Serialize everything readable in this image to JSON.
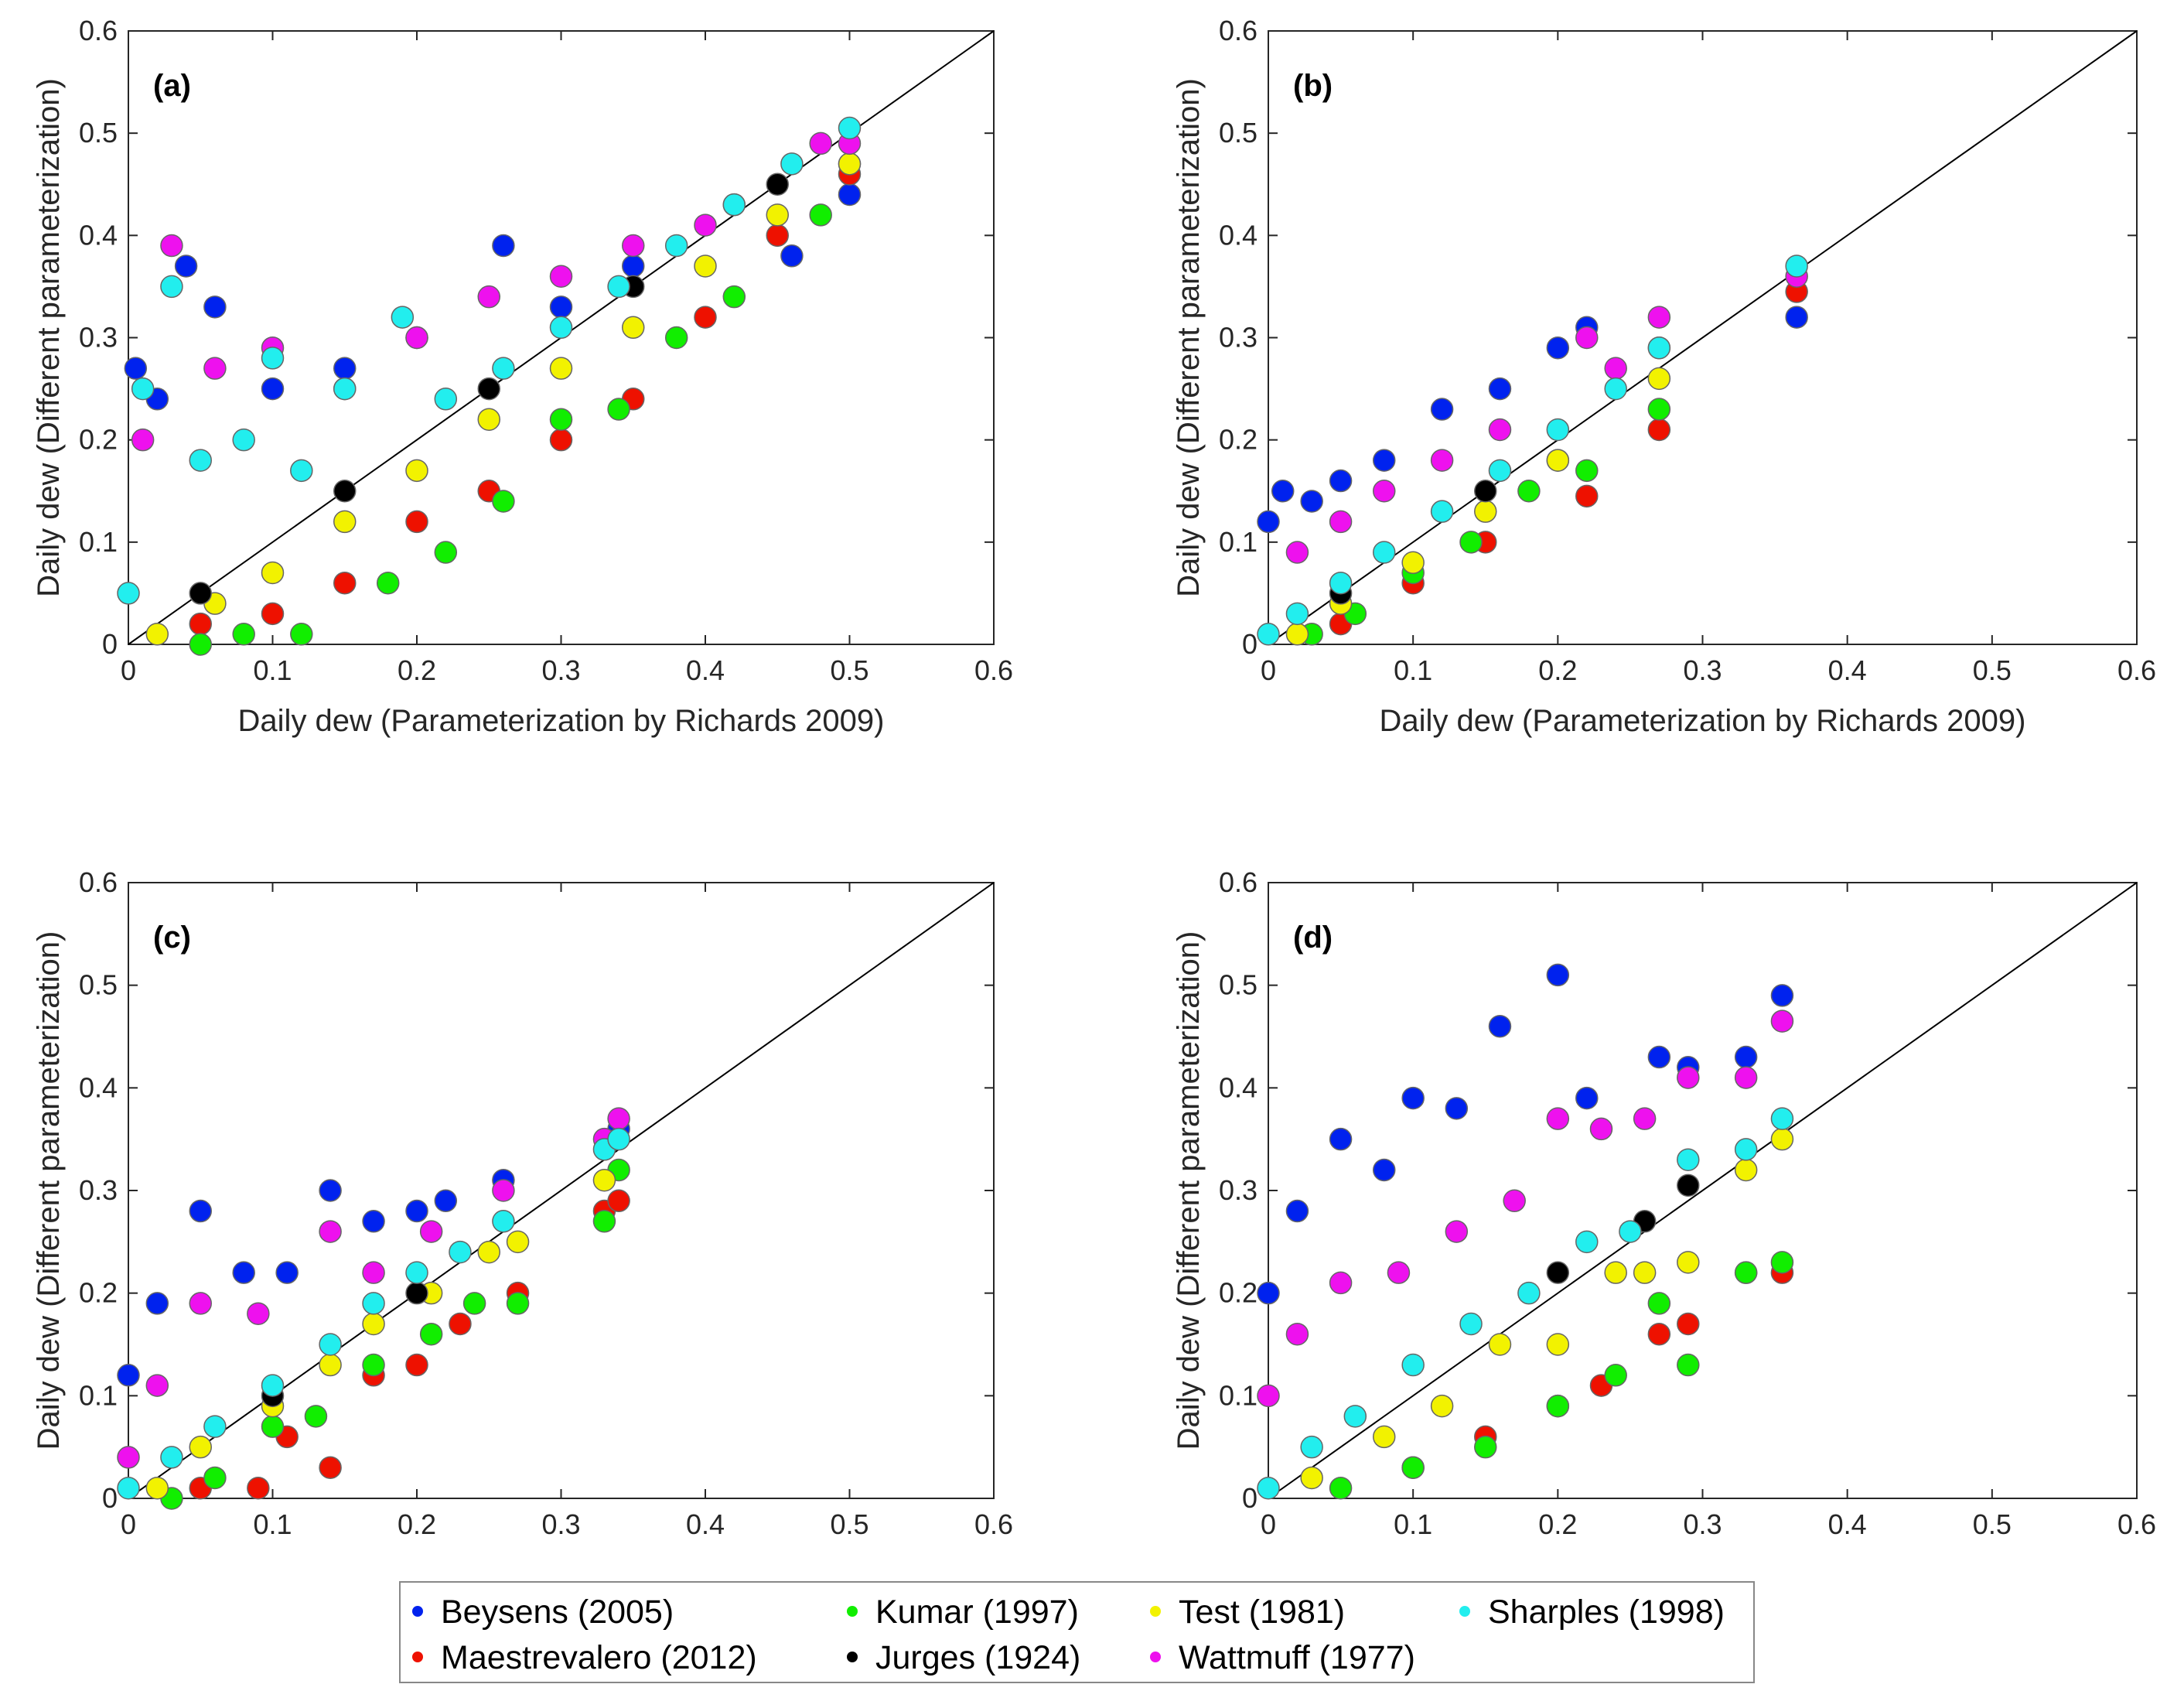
{
  "chart_data": [
    {
      "type": "scatter",
      "label": "(a)",
      "xlabel": "Daily dew (Parameterization by Richards 2009)",
      "ylabel": "Daily dew (Different parameterization)",
      "xlim": [
        0,
        0.6
      ],
      "ylim": [
        0,
        0.6
      ],
      "xticks": [
        0,
        0.1,
        0.2,
        0.3,
        0.4,
        0.5,
        0.6
      ],
      "yticks": [
        0,
        0.1,
        0.2,
        0.3,
        0.4,
        0.5,
        0.6
      ],
      "diagonal": true,
      "series": [
        {
          "color": "#0022ee",
          "x": [
            0.005,
            0.02,
            0.04,
            0.06,
            0.1,
            0.15,
            0.2,
            0.26,
            0.3,
            0.35,
            0.42,
            0.46,
            0.5
          ],
          "values": [
            0.27,
            0.24,
            0.37,
            0.33,
            0.25,
            0.27,
            0.3,
            0.39,
            0.33,
            0.37,
            0.43,
            0.38,
            0.44
          ]
        },
        {
          "color": "#ee1100",
          "x": [
            0.05,
            0.1,
            0.15,
            0.2,
            0.25,
            0.3,
            0.35,
            0.4,
            0.45,
            0.5
          ],
          "values": [
            0.02,
            0.03,
            0.06,
            0.12,
            0.15,
            0.2,
            0.24,
            0.32,
            0.4,
            0.46
          ]
        },
        {
          "color": "#11ee00",
          "x": [
            0.05,
            0.08,
            0.12,
            0.18,
            0.22,
            0.26,
            0.3,
            0.34,
            0.38,
            0.42,
            0.48,
            0.5
          ],
          "values": [
            0.0,
            0.01,
            0.01,
            0.06,
            0.09,
            0.14,
            0.22,
            0.23,
            0.3,
            0.34,
            0.42,
            0.47
          ]
        },
        {
          "color": "#f2f200",
          "x": [
            0.02,
            0.06,
            0.1,
            0.15,
            0.2,
            0.25,
            0.3,
            0.35,
            0.4,
            0.45,
            0.5
          ],
          "values": [
            0.01,
            0.04,
            0.07,
            0.12,
            0.17,
            0.22,
            0.27,
            0.31,
            0.37,
            0.42,
            0.47
          ]
        },
        {
          "color": "#000000",
          "x": [
            0.05,
            0.15,
            0.25,
            0.35,
            0.45
          ],
          "values": [
            0.05,
            0.15,
            0.25,
            0.35,
            0.45
          ]
        },
        {
          "color": "#ee11ee",
          "x": [
            0.01,
            0.03,
            0.06,
            0.1,
            0.15,
            0.2,
            0.25,
            0.3,
            0.35,
            0.4,
            0.48,
            0.5
          ],
          "values": [
            0.2,
            0.39,
            0.27,
            0.29,
            0.25,
            0.3,
            0.34,
            0.36,
            0.39,
            0.41,
            0.49,
            0.49
          ]
        },
        {
          "color": "#22eeee",
          "x": [
            0.0,
            0.01,
            0.03,
            0.05,
            0.08,
            0.1,
            0.12,
            0.15,
            0.19,
            0.22,
            0.26,
            0.3,
            0.34,
            0.38,
            0.42,
            0.46,
            0.5
          ],
          "values": [
            0.05,
            0.25,
            0.35,
            0.18,
            0.2,
            0.28,
            0.17,
            0.25,
            0.32,
            0.24,
            0.27,
            0.31,
            0.35,
            0.39,
            0.43,
            0.47,
            0.505
          ]
        }
      ]
    },
    {
      "type": "scatter",
      "label": "(b)",
      "xlabel": "Daily dew (Parameterization by Richards 2009)",
      "ylabel": "Daily dew (Different parameterization)",
      "xlim": [
        0,
        0.6
      ],
      "ylim": [
        0,
        0.6
      ],
      "xticks": [
        0,
        0.1,
        0.2,
        0.3,
        0.4,
        0.5,
        0.6
      ],
      "yticks": [
        0,
        0.1,
        0.2,
        0.3,
        0.4,
        0.5,
        0.6
      ],
      "diagonal": true,
      "series": [
        {
          "color": "#0022ee",
          "x": [
            0,
            0.01,
            0.03,
            0.05,
            0.08,
            0.12,
            0.16,
            0.2,
            0.22,
            0.27,
            0.365
          ],
          "values": [
            0.12,
            0.15,
            0.14,
            0.16,
            0.18,
            0.23,
            0.25,
            0.29,
            0.31,
            0.29,
            0.32
          ]
        },
        {
          "color": "#ee1100",
          "x": [
            0.05,
            0.1,
            0.15,
            0.2,
            0.22,
            0.27,
            0.365
          ],
          "values": [
            0.02,
            0.06,
            0.1,
            0.18,
            0.145,
            0.21,
            0.345
          ]
        },
        {
          "color": "#11ee00",
          "x": [
            0.03,
            0.06,
            0.1,
            0.14,
            0.18,
            0.22,
            0.27
          ],
          "values": [
            0.01,
            0.03,
            0.07,
            0.1,
            0.15,
            0.17,
            0.23
          ]
        },
        {
          "color": "#f2f200",
          "x": [
            0.02,
            0.05,
            0.1,
            0.15,
            0.2,
            0.27
          ],
          "values": [
            0.01,
            0.04,
            0.08,
            0.13,
            0.18,
            0.26
          ]
        },
        {
          "color": "#000000",
          "x": [
            0.05,
            0.15
          ],
          "values": [
            0.05,
            0.15
          ]
        },
        {
          "color": "#ee11ee",
          "x": [
            0.02,
            0.05,
            0.08,
            0.12,
            0.16,
            0.22,
            0.24,
            0.27,
            0.365
          ],
          "values": [
            0.09,
            0.12,
            0.15,
            0.18,
            0.21,
            0.3,
            0.27,
            0.32,
            0.36
          ]
        },
        {
          "color": "#22eeee",
          "x": [
            0,
            0.02,
            0.05,
            0.08,
            0.12,
            0.16,
            0.2,
            0.24,
            0.27,
            0.365
          ],
          "values": [
            0.01,
            0.03,
            0.06,
            0.09,
            0.13,
            0.17,
            0.21,
            0.25,
            0.29,
            0.37
          ]
        }
      ]
    },
    {
      "type": "scatter",
      "label": "(c)",
      "ylabel": "Daily dew (Different parameterization)",
      "xlim": [
        0,
        0.6
      ],
      "ylim": [
        0,
        0.6
      ],
      "xticks": [
        0,
        0.1,
        0.2,
        0.3,
        0.4,
        0.5,
        0.6
      ],
      "yticks": [
        0,
        0.1,
        0.2,
        0.3,
        0.4,
        0.5,
        0.6
      ],
      "diagonal": true,
      "series": [
        {
          "color": "#0022ee",
          "x": [
            0,
            0.02,
            0.05,
            0.08,
            0.11,
            0.14,
            0.17,
            0.2,
            0.22,
            0.26,
            0.34
          ],
          "values": [
            0.12,
            0.19,
            0.28,
            0.22,
            0.22,
            0.3,
            0.27,
            0.28,
            0.29,
            0.31,
            0.36
          ]
        },
        {
          "color": "#ee1100",
          "x": [
            0.05,
            0.09,
            0.11,
            0.14,
            0.17,
            0.2,
            0.23,
            0.27,
            0.33,
            0.34
          ],
          "values": [
            0.01,
            0.01,
            0.06,
            0.03,
            0.12,
            0.13,
            0.17,
            0.2,
            0.28,
            0.29
          ]
        },
        {
          "color": "#11ee00",
          "x": [
            0.03,
            0.06,
            0.1,
            0.13,
            0.17,
            0.21,
            0.24,
            0.27,
            0.33,
            0.34
          ],
          "values": [
            0,
            0.02,
            0.07,
            0.08,
            0.13,
            0.16,
            0.19,
            0.19,
            0.27,
            0.32
          ]
        },
        {
          "color": "#f2f200",
          "x": [
            0.02,
            0.05,
            0.1,
            0.14,
            0.17,
            0.21,
            0.25,
            0.27,
            0.33
          ],
          "values": [
            0.01,
            0.05,
            0.09,
            0.13,
            0.17,
            0.2,
            0.24,
            0.25,
            0.31
          ]
        },
        {
          "color": "#000000",
          "x": [
            0.1,
            0.2
          ],
          "values": [
            0.1,
            0.2
          ]
        },
        {
          "color": "#ee11ee",
          "x": [
            0,
            0.02,
            0.05,
            0.09,
            0.14,
            0.17,
            0.21,
            0.26,
            0.33,
            0.34
          ],
          "values": [
            0.04,
            0.11,
            0.19,
            0.18,
            0.26,
            0.22,
            0.26,
            0.3,
            0.35,
            0.37
          ]
        },
        {
          "color": "#22eeee",
          "x": [
            0,
            0.03,
            0.06,
            0.1,
            0.14,
            0.17,
            0.2,
            0.23,
            0.26,
            0.33,
            0.34
          ],
          "values": [
            0.01,
            0.04,
            0.07,
            0.11,
            0.15,
            0.19,
            0.22,
            0.24,
            0.27,
            0.34,
            0.35
          ]
        }
      ]
    },
    {
      "type": "scatter",
      "label": "(d)",
      "ylabel": "Daily dew (Different parameterization)",
      "xlim": [
        0,
        0.6
      ],
      "ylim": [
        0,
        0.6
      ],
      "xticks": [
        0,
        0.1,
        0.2,
        0.3,
        0.4,
        0.5,
        0.6
      ],
      "yticks": [
        0,
        0.1,
        0.2,
        0.3,
        0.4,
        0.5,
        0.6
      ],
      "diagonal": true,
      "series": [
        {
          "color": "#0022ee",
          "x": [
            0,
            0.02,
            0.05,
            0.08,
            0.1,
            0.13,
            0.16,
            0.2,
            0.22,
            0.27,
            0.29,
            0.33,
            0.355
          ],
          "values": [
            0.2,
            0.28,
            0.35,
            0.32,
            0.39,
            0.38,
            0.46,
            0.51,
            0.39,
            0.43,
            0.42,
            0.43,
            0.49
          ]
        },
        {
          "color": "#ee1100",
          "x": [
            0.1,
            0.15,
            0.2,
            0.23,
            0.27,
            0.29,
            0.33,
            0.355
          ],
          "values": [
            0.03,
            0.06,
            0.09,
            0.11,
            0.16,
            0.17,
            0.22,
            0.22
          ]
        },
        {
          "color": "#11ee00",
          "x": [
            0.05,
            0.1,
            0.15,
            0.2,
            0.24,
            0.27,
            0.29,
            0.33,
            0.355
          ],
          "values": [
            0.01,
            0.03,
            0.05,
            0.09,
            0.12,
            0.19,
            0.13,
            0.22,
            0.23
          ]
        },
        {
          "color": "#f2f200",
          "x": [
            0.03,
            0.08,
            0.12,
            0.16,
            0.2,
            0.24,
            0.26,
            0.29,
            0.33,
            0.355
          ],
          "values": [
            0.02,
            0.06,
            0.09,
            0.15,
            0.15,
            0.22,
            0.22,
            0.23,
            0.32,
            0.35
          ]
        },
        {
          "color": "#000000",
          "x": [
            0.2,
            0.26,
            0.29
          ],
          "values": [
            0.22,
            0.27,
            0.305
          ]
        },
        {
          "color": "#ee11ee",
          "x": [
            0,
            0.02,
            0.05,
            0.09,
            0.13,
            0.17,
            0.2,
            0.23,
            0.26,
            0.29,
            0.33,
            0.355
          ],
          "values": [
            0.1,
            0.16,
            0.21,
            0.22,
            0.26,
            0.29,
            0.37,
            0.36,
            0.37,
            0.41,
            0.41,
            0.465
          ]
        },
        {
          "color": "#22eeee",
          "x": [
            0,
            0.03,
            0.06,
            0.1,
            0.14,
            0.18,
            0.22,
            0.25,
            0.29,
            0.33,
            0.355
          ],
          "values": [
            0.01,
            0.05,
            0.08,
            0.13,
            0.17,
            0.2,
            0.25,
            0.26,
            0.33,
            0.34,
            0.37
          ]
        }
      ]
    }
  ],
  "legend": {
    "entries": [
      {
        "name": "Beysens (2005)",
        "color": "#0022ee"
      },
      {
        "name": "Maestrevalero (2012)",
        "color": "#ee1100"
      },
      {
        "name": "Kumar (1997)",
        "color": "#11ee00"
      },
      {
        "name": "Jurges (1924)",
        "color": "#000000"
      },
      {
        "name": "Test (1981)",
        "color": "#f2f200"
      },
      {
        "name": "Wattmuff (1977)",
        "color": "#ee11ee"
      },
      {
        "name": "Sharples (1998)",
        "color": "#22eeee"
      }
    ]
  }
}
